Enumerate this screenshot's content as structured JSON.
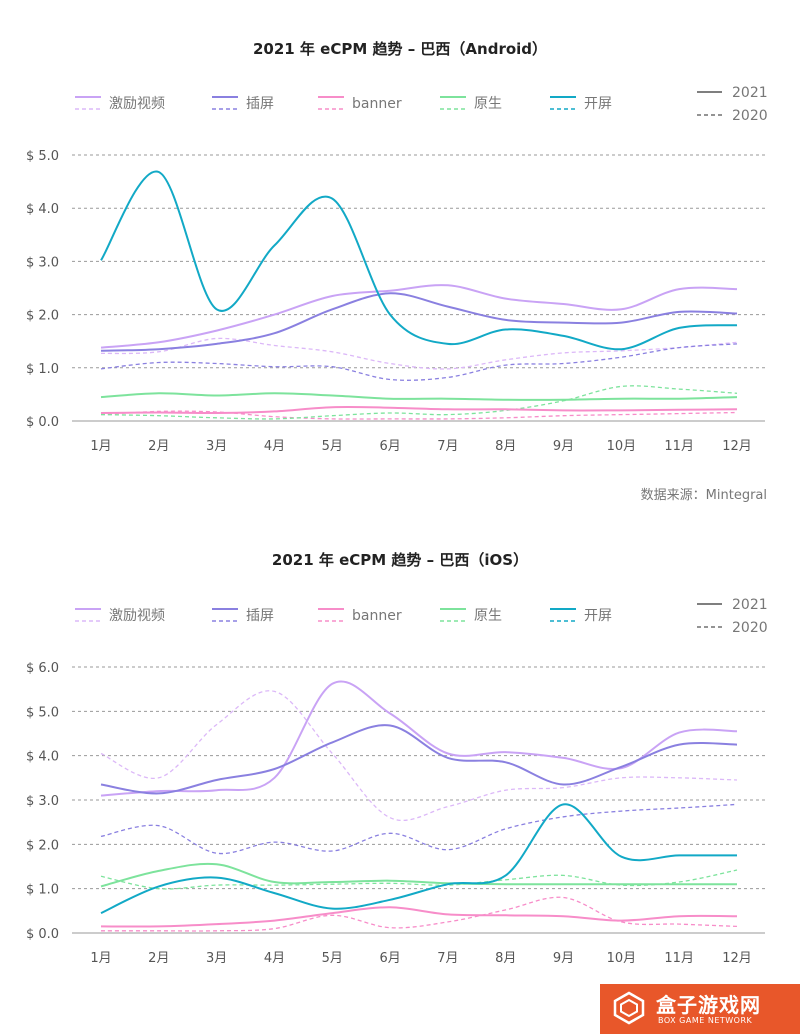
{
  "legend": {
    "items": [
      {
        "name": "激励视频",
        "color": "#c9a3f5",
        "dash_color": "#dcb8f8"
      },
      {
        "name": "插屏",
        "color": "#8a80e0",
        "dash_color": "#8a80e0"
      },
      {
        "name": "banner",
        "color": "#f78dc9",
        "dash_color": "#f78dc9"
      },
      {
        "name": "原生",
        "color": "#7de39c",
        "dash_color": "#7de39c"
      },
      {
        "name": "开屏",
        "color": "#12a9c6",
        "dash_color": "#12a9c6"
      }
    ],
    "year_solid": "2021",
    "year_dashed": "2020"
  },
  "source_note": "数据来源：Mintegral",
  "watermark": {
    "title": "盒子游戏网",
    "subtitle": "BOX GAME NETWORK"
  },
  "chart_data": [
    {
      "type": "line",
      "title": "2021 年 eCPM 趋势 – 巴西（Android）",
      "categories": [
        "1月",
        "2月",
        "3月",
        "4月",
        "5月",
        "6月",
        "7月",
        "8月",
        "9月",
        "10月",
        "11月",
        "12月"
      ],
      "y_ticks": [
        "$ 0.0",
        "$ 1.0",
        "$ 2.0",
        "$ 3.0",
        "$ 4.0",
        "$ 5.0"
      ],
      "ylim": [
        0,
        5
      ],
      "grid": true,
      "legend_position": "top",
      "series": [
        {
          "name": "激励视频",
          "year": "2021",
          "values": [
            1.38,
            1.48,
            1.7,
            2.0,
            2.35,
            2.45,
            2.55,
            2.3,
            2.2,
            2.1,
            2.48,
            2.48
          ]
        },
        {
          "name": "激励视频",
          "year": "2020",
          "values": [
            1.27,
            1.3,
            1.55,
            1.42,
            1.3,
            1.08,
            0.98,
            1.15,
            1.28,
            1.32,
            1.38,
            1.48
          ]
        },
        {
          "name": "插屏",
          "year": "2021",
          "values": [
            1.32,
            1.35,
            1.45,
            1.65,
            2.1,
            2.4,
            2.15,
            1.9,
            1.85,
            1.85,
            2.05,
            2.02
          ]
        },
        {
          "name": "插屏",
          "year": "2020",
          "values": [
            0.98,
            1.1,
            1.08,
            1.02,
            1.02,
            0.78,
            0.82,
            1.05,
            1.08,
            1.2,
            1.38,
            1.45
          ]
        },
        {
          "name": "banner",
          "year": "2021",
          "values": [
            0.15,
            0.16,
            0.15,
            0.18,
            0.26,
            0.25,
            0.22,
            0.22,
            0.2,
            0.2,
            0.21,
            0.22
          ]
        },
        {
          "name": "banner",
          "year": "2020",
          "values": [
            0.12,
            0.18,
            0.17,
            0.08,
            0.04,
            0.04,
            0.04,
            0.06,
            0.1,
            0.12,
            0.14,
            0.16
          ]
        },
        {
          "name": "原生",
          "year": "2021",
          "values": [
            0.45,
            0.52,
            0.48,
            0.52,
            0.48,
            0.42,
            0.42,
            0.4,
            0.4,
            0.42,
            0.42,
            0.45
          ]
        },
        {
          "name": "原生",
          "year": "2020",
          "values": [
            0.12,
            0.1,
            0.06,
            0.04,
            0.1,
            0.15,
            0.12,
            0.2,
            0.38,
            0.65,
            0.6,
            0.52
          ]
        },
        {
          "name": "开屏",
          "year": "2021",
          "values": [
            3.02,
            4.68,
            2.1,
            3.3,
            4.18,
            2.0,
            1.45,
            1.72,
            1.6,
            1.35,
            1.75,
            1.8
          ]
        }
      ]
    },
    {
      "type": "line",
      "title": "2021 年 eCPM 趋势 – 巴西（iOS）",
      "categories": [
        "1月",
        "2月",
        "3月",
        "4月",
        "5月",
        "6月",
        "7月",
        "8月",
        "9月",
        "10月",
        "11月",
        "12月"
      ],
      "y_ticks": [
        "$ 0.0",
        "$ 1.0",
        "$ 2.0",
        "$ 3.0",
        "$ 4.0",
        "$ 5.0",
        "$ 6.0"
      ],
      "ylim": [
        0,
        6
      ],
      "grid": true,
      "legend_position": "top",
      "series": [
        {
          "name": "激励视频",
          "year": "2021",
          "values": [
            3.1,
            3.2,
            3.22,
            3.5,
            5.62,
            4.95,
            4.05,
            4.08,
            3.95,
            3.72,
            4.52,
            4.55
          ]
        },
        {
          "name": "激励视频",
          "year": "2020",
          "values": [
            4.05,
            3.5,
            4.7,
            5.45,
            4.05,
            2.6,
            2.85,
            3.22,
            3.28,
            3.5,
            3.5,
            3.45
          ]
        },
        {
          "name": "插屏",
          "year": "2021",
          "values": [
            3.35,
            3.15,
            3.45,
            3.7,
            4.3,
            4.68,
            3.95,
            3.85,
            3.35,
            3.75,
            4.25,
            4.25
          ]
        },
        {
          "name": "插屏",
          "year": "2020",
          "values": [
            2.18,
            2.42,
            1.8,
            2.05,
            1.85,
            2.25,
            1.88,
            2.35,
            2.62,
            2.75,
            2.82,
            2.9
          ]
        },
        {
          "name": "banner",
          "year": "2021",
          "values": [
            0.15,
            0.15,
            0.2,
            0.28,
            0.45,
            0.58,
            0.42,
            0.4,
            0.38,
            0.28,
            0.38,
            0.38
          ]
        },
        {
          "name": "banner",
          "year": "2020",
          "values": [
            0.05,
            0.05,
            0.05,
            0.1,
            0.4,
            0.12,
            0.25,
            0.52,
            0.8,
            0.25,
            0.2,
            0.15
          ]
        },
        {
          "name": "原生",
          "year": "2021",
          "values": [
            1.05,
            1.4,
            1.55,
            1.15,
            1.15,
            1.18,
            1.12,
            1.1,
            1.1,
            1.1,
            1.1,
            1.1
          ]
        },
        {
          "name": "原生",
          "year": "2020",
          "values": [
            1.28,
            1.0,
            1.08,
            1.08,
            1.1,
            1.12,
            1.08,
            1.2,
            1.3,
            1.08,
            1.15,
            1.42
          ]
        },
        {
          "name": "开屏",
          "year": "2021",
          "values": [
            0.45,
            1.05,
            1.25,
            0.9,
            0.55,
            0.75,
            1.1,
            1.3,
            2.9,
            1.72,
            1.75,
            1.75
          ]
        }
      ]
    }
  ]
}
